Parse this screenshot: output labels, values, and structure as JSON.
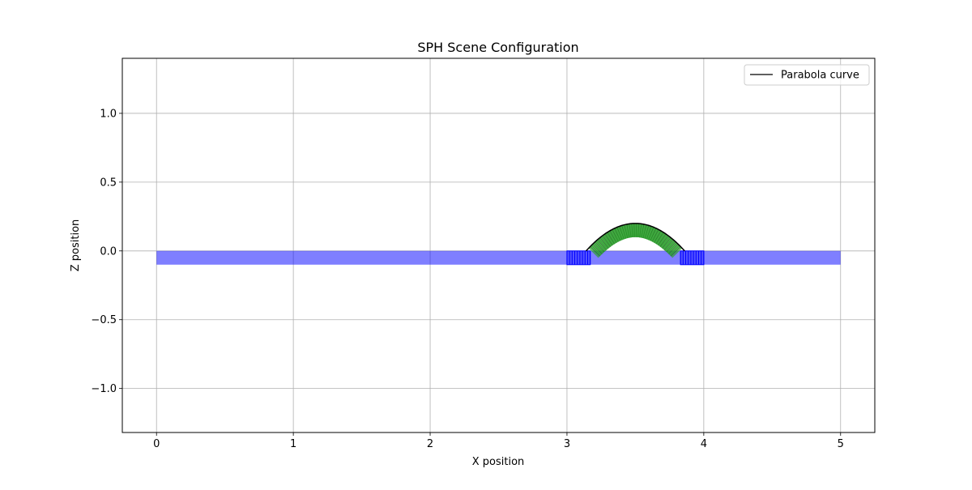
{
  "chart_data": {
    "type": "scatter",
    "title": "SPH Scene Configuration",
    "xlabel": "X position",
    "ylabel": "Z position",
    "xlim": [
      -0.25,
      5.25
    ],
    "ylim": [
      -1.32,
      1.4
    ],
    "x_ticks": [
      0,
      1,
      2,
      3,
      4,
      5
    ],
    "x_tick_labels": [
      "0",
      "1",
      "2",
      "3",
      "4",
      "5"
    ],
    "y_ticks": [
      1.0,
      0.5,
      0.0,
      -0.5,
      -1.0
    ],
    "y_tick_labels": [
      "1.0",
      "0.5",
      "0.0",
      "−0.5",
      "−1.0"
    ],
    "grid": true,
    "legend": {
      "position": "top-right",
      "entries": [
        "Parabola curve"
      ]
    },
    "colors": {
      "ground": "#0000ff",
      "parabola_particles": "#2ca02c",
      "curve": "#000000",
      "grid": "#b0b0b0"
    },
    "series": [
      {
        "kind": "ground_band",
        "x_range": [
          0,
          5
        ],
        "z_range": [
          -0.1,
          0.0
        ]
      },
      {
        "kind": "particle_cells_left",
        "x_range": [
          3.0,
          3.17
        ],
        "z_range": [
          -0.1,
          0.0
        ]
      },
      {
        "kind": "particle_cells_right",
        "x_range": [
          3.83,
          4.0
        ],
        "z_range": [
          -0.1,
          0.0
        ]
      },
      {
        "kind": "parabola_particles",
        "x_range": [
          3.17,
          3.83
        ],
        "thickness": 0.1
      },
      {
        "name": "Parabola curve",
        "kind": "curve",
        "vertex": [
          3.5,
          0.2
        ],
        "x_range": [
          3.14,
          3.86
        ],
        "z_at_ends": 0.0
      }
    ]
  }
}
